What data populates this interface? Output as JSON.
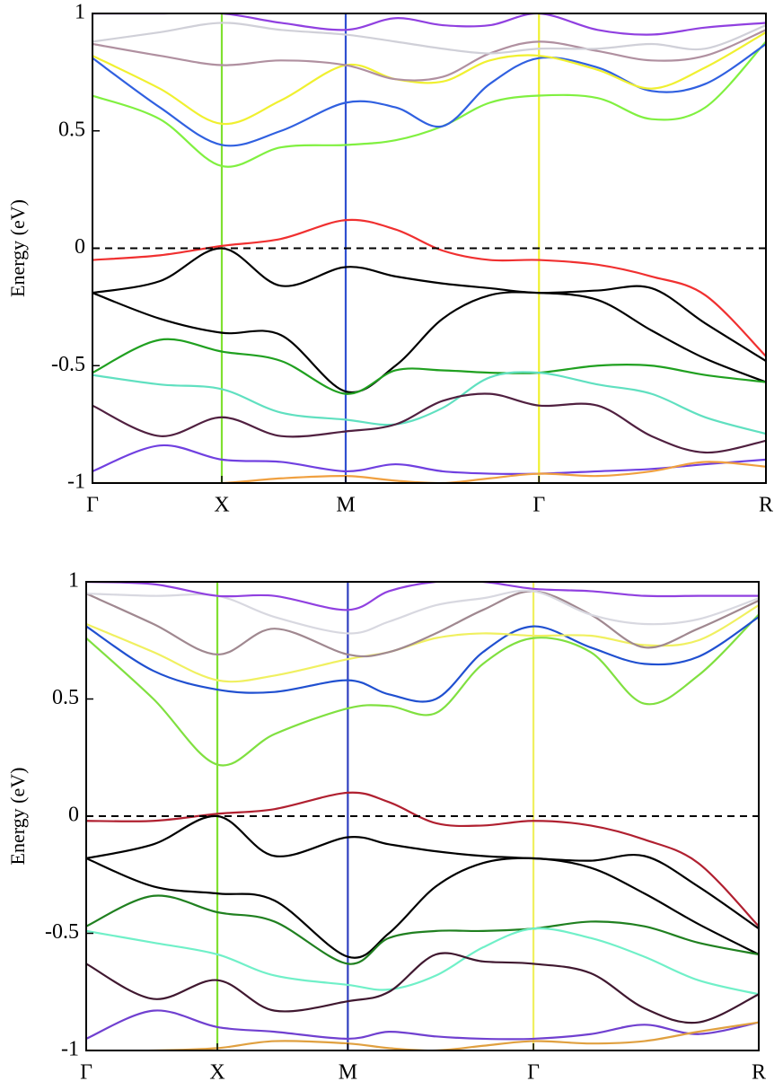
{
  "chart_data": [
    {
      "type": "line",
      "ylabel": "Energy (eV)",
      "x": [
        0,
        0.1,
        0.192,
        0.28,
        0.376,
        0.45,
        0.52,
        0.59,
        0.663,
        0.75,
        0.83,
        0.91,
        1.0
      ],
      "xlim": [
        0,
        1
      ],
      "xticks": [
        {
          "value": 0,
          "label": "Γ"
        },
        {
          "value": 0.192,
          "label": "X"
        },
        {
          "value": 0.376,
          "label": "M"
        },
        {
          "value": 0.663,
          "label": "Γ"
        },
        {
          "value": 1.0,
          "label": "R"
        }
      ],
      "vline_colors": [
        null,
        "#80e030",
        "#3050d0",
        "#f0f030",
        null
      ],
      "ylim": [
        -1,
        1
      ],
      "yticks": [
        -1,
        -0.5,
        0,
        0.5,
        1
      ],
      "reference_line": {
        "y": 0,
        "style": "dashed",
        "color": "#000000"
      },
      "series": [
        {
          "color": "#f03030",
          "values": [
            -0.05,
            -0.03,
            0.01,
            0.04,
            0.12,
            0.08,
            -0.01,
            -0.05,
            -0.05,
            -0.07,
            -0.12,
            -0.2,
            -0.46
          ]
        },
        {
          "color": "#000000",
          "values": [
            -0.19,
            -0.14,
            0.0,
            -0.16,
            -0.08,
            -0.12,
            -0.15,
            -0.17,
            -0.19,
            -0.18,
            -0.17,
            -0.32,
            -0.48
          ]
        },
        {
          "color": "#000000",
          "values": [
            -0.19,
            -0.3,
            -0.36,
            -0.37,
            -0.61,
            -0.5,
            -0.3,
            -0.2,
            -0.19,
            -0.22,
            -0.35,
            -0.47,
            -0.57
          ]
        },
        {
          "color": "#20a020",
          "values": [
            -0.53,
            -0.39,
            -0.44,
            -0.48,
            -0.62,
            -0.52,
            -0.52,
            -0.53,
            -0.53,
            -0.5,
            -0.5,
            -0.54,
            -0.57
          ]
        },
        {
          "color": "#60e0c0",
          "values": [
            -0.54,
            -0.58,
            -0.6,
            -0.7,
            -0.73,
            -0.75,
            -0.68,
            -0.55,
            -0.53,
            -0.58,
            -0.62,
            -0.72,
            -0.79
          ]
        },
        {
          "color": "#502040",
          "values": [
            -0.67,
            -0.8,
            -0.72,
            -0.8,
            -0.78,
            -0.75,
            -0.65,
            -0.62,
            -0.67,
            -0.67,
            -0.8,
            -0.87,
            -0.82
          ]
        },
        {
          "color": "#7040e0",
          "values": [
            -0.95,
            -0.84,
            -0.9,
            -0.91,
            -0.95,
            -0.92,
            -0.95,
            -0.96,
            -0.96,
            -0.95,
            -0.94,
            -0.92,
            -0.9
          ]
        },
        {
          "color": "#f0a040",
          "values": [
            -1.0,
            -1.0,
            -1.0,
            -0.98,
            -0.97,
            -0.99,
            -1.0,
            -0.98,
            -0.96,
            -0.97,
            -0.95,
            -0.91,
            -0.93
          ]
        },
        {
          "color": "#80f040",
          "values": [
            0.65,
            0.55,
            0.35,
            0.43,
            0.44,
            0.46,
            0.52,
            0.62,
            0.65,
            0.64,
            0.55,
            0.6,
            0.88
          ]
        },
        {
          "color": "#3060e0",
          "values": [
            0.81,
            0.6,
            0.44,
            0.5,
            0.62,
            0.6,
            0.52,
            0.7,
            0.81,
            0.77,
            0.67,
            0.7,
            0.87
          ]
        },
        {
          "color": "#f0f030",
          "values": [
            0.82,
            0.68,
            0.53,
            0.63,
            0.78,
            0.72,
            0.71,
            0.8,
            0.82,
            0.76,
            0.68,
            0.77,
            0.92
          ]
        },
        {
          "color": "#b090a0",
          "values": [
            0.87,
            0.82,
            0.78,
            0.8,
            0.78,
            0.72,
            0.73,
            0.83,
            0.88,
            0.84,
            0.8,
            0.82,
            0.93
          ]
        },
        {
          "color": "#d0d0d8",
          "values": [
            0.88,
            0.92,
            0.96,
            0.93,
            0.91,
            0.88,
            0.85,
            0.83,
            0.85,
            0.85,
            0.87,
            0.85,
            0.95
          ]
        },
        {
          "color": "#9040e0",
          "values": [
            1.0,
            1.0,
            1.0,
            0.96,
            0.93,
            0.98,
            0.95,
            0.95,
            1.0,
            0.93,
            0.91,
            0.94,
            0.96
          ]
        }
      ]
    },
    {
      "type": "line",
      "ylabel": "Energy (eV)",
      "x": [
        0,
        0.1,
        0.195,
        0.28,
        0.389,
        0.45,
        0.52,
        0.59,
        0.665,
        0.75,
        0.83,
        0.91,
        1.0
      ],
      "xlim": [
        0,
        1
      ],
      "xticks": [
        {
          "value": 0,
          "label": "Γ"
        },
        {
          "value": 0.195,
          "label": "X"
        },
        {
          "value": 0.389,
          "label": "M"
        },
        {
          "value": 0.665,
          "label": "Γ"
        },
        {
          "value": 1.0,
          "label": "R"
        }
      ],
      "vline_colors": [
        null,
        "#80e030",
        "#3040c0",
        "#f0f060",
        null
      ],
      "ylim": [
        -1,
        1
      ],
      "yticks": [
        -1,
        -0.5,
        0,
        0.5,
        1
      ],
      "reference_line": {
        "y": 0,
        "style": "dashed",
        "color": "#000000"
      },
      "series": [
        {
          "color": "#b02030",
          "values": [
            -0.02,
            -0.02,
            0.01,
            0.03,
            0.1,
            0.06,
            -0.03,
            -0.04,
            -0.02,
            -0.04,
            -0.1,
            -0.2,
            -0.47
          ]
        },
        {
          "color": "#000000",
          "values": [
            -0.18,
            -0.12,
            0.0,
            -0.17,
            -0.09,
            -0.12,
            -0.15,
            -0.17,
            -0.18,
            -0.19,
            -0.17,
            -0.3,
            -0.48
          ]
        },
        {
          "color": "#000000",
          "values": [
            -0.18,
            -0.3,
            -0.33,
            -0.36,
            -0.6,
            -0.5,
            -0.3,
            -0.2,
            -0.18,
            -0.22,
            -0.33,
            -0.46,
            -0.59
          ]
        },
        {
          "color": "#208020",
          "values": [
            -0.47,
            -0.34,
            -0.41,
            -0.45,
            -0.63,
            -0.52,
            -0.49,
            -0.49,
            -0.48,
            -0.45,
            -0.47,
            -0.54,
            -0.59
          ]
        },
        {
          "color": "#70f0c8",
          "values": [
            -0.49,
            -0.54,
            -0.59,
            -0.68,
            -0.72,
            -0.74,
            -0.68,
            -0.56,
            -0.48,
            -0.52,
            -0.6,
            -0.7,
            -0.76
          ]
        },
        {
          "color": "#401830",
          "values": [
            -0.63,
            -0.78,
            -0.7,
            -0.83,
            -0.79,
            -0.75,
            -0.59,
            -0.62,
            -0.63,
            -0.67,
            -0.82,
            -0.88,
            -0.76
          ]
        },
        {
          "color": "#7040d0",
          "values": [
            -0.95,
            -0.83,
            -0.9,
            -0.92,
            -0.95,
            -0.92,
            -0.94,
            -0.95,
            -0.95,
            -0.93,
            -0.89,
            -0.93,
            -0.88
          ]
        },
        {
          "color": "#e0a040",
          "values": [
            -1.0,
            -1.0,
            -0.99,
            -0.96,
            -0.97,
            -0.99,
            -1.0,
            -0.98,
            -0.96,
            -0.97,
            -0.96,
            -0.92,
            -0.88
          ]
        },
        {
          "color": "#80e040",
          "values": [
            0.76,
            0.5,
            0.22,
            0.35,
            0.46,
            0.47,
            0.44,
            0.65,
            0.76,
            0.7,
            0.48,
            0.6,
            0.86
          ]
        },
        {
          "color": "#2050d0",
          "values": [
            0.81,
            0.62,
            0.54,
            0.53,
            0.58,
            0.52,
            0.5,
            0.7,
            0.81,
            0.72,
            0.65,
            0.68,
            0.85
          ]
        },
        {
          "color": "#f0f060",
          "values": [
            0.82,
            0.7,
            0.58,
            0.6,
            0.67,
            0.7,
            0.76,
            0.78,
            0.77,
            0.77,
            0.73,
            0.75,
            0.9
          ]
        },
        {
          "color": "#a08890",
          "values": [
            0.95,
            0.82,
            0.69,
            0.8,
            0.69,
            0.7,
            0.78,
            0.88,
            0.96,
            0.86,
            0.72,
            0.8,
            0.92
          ]
        },
        {
          "color": "#d8d8e0",
          "values": [
            0.95,
            0.94,
            0.94,
            0.85,
            0.78,
            0.83,
            0.9,
            0.93,
            0.96,
            0.86,
            0.82,
            0.84,
            0.93
          ]
        },
        {
          "color": "#9040e0",
          "values": [
            1.0,
            0.99,
            0.94,
            0.94,
            0.88,
            0.96,
            1.0,
            1.0,
            0.97,
            0.96,
            0.94,
            0.94,
            0.94
          ]
        }
      ]
    }
  ]
}
